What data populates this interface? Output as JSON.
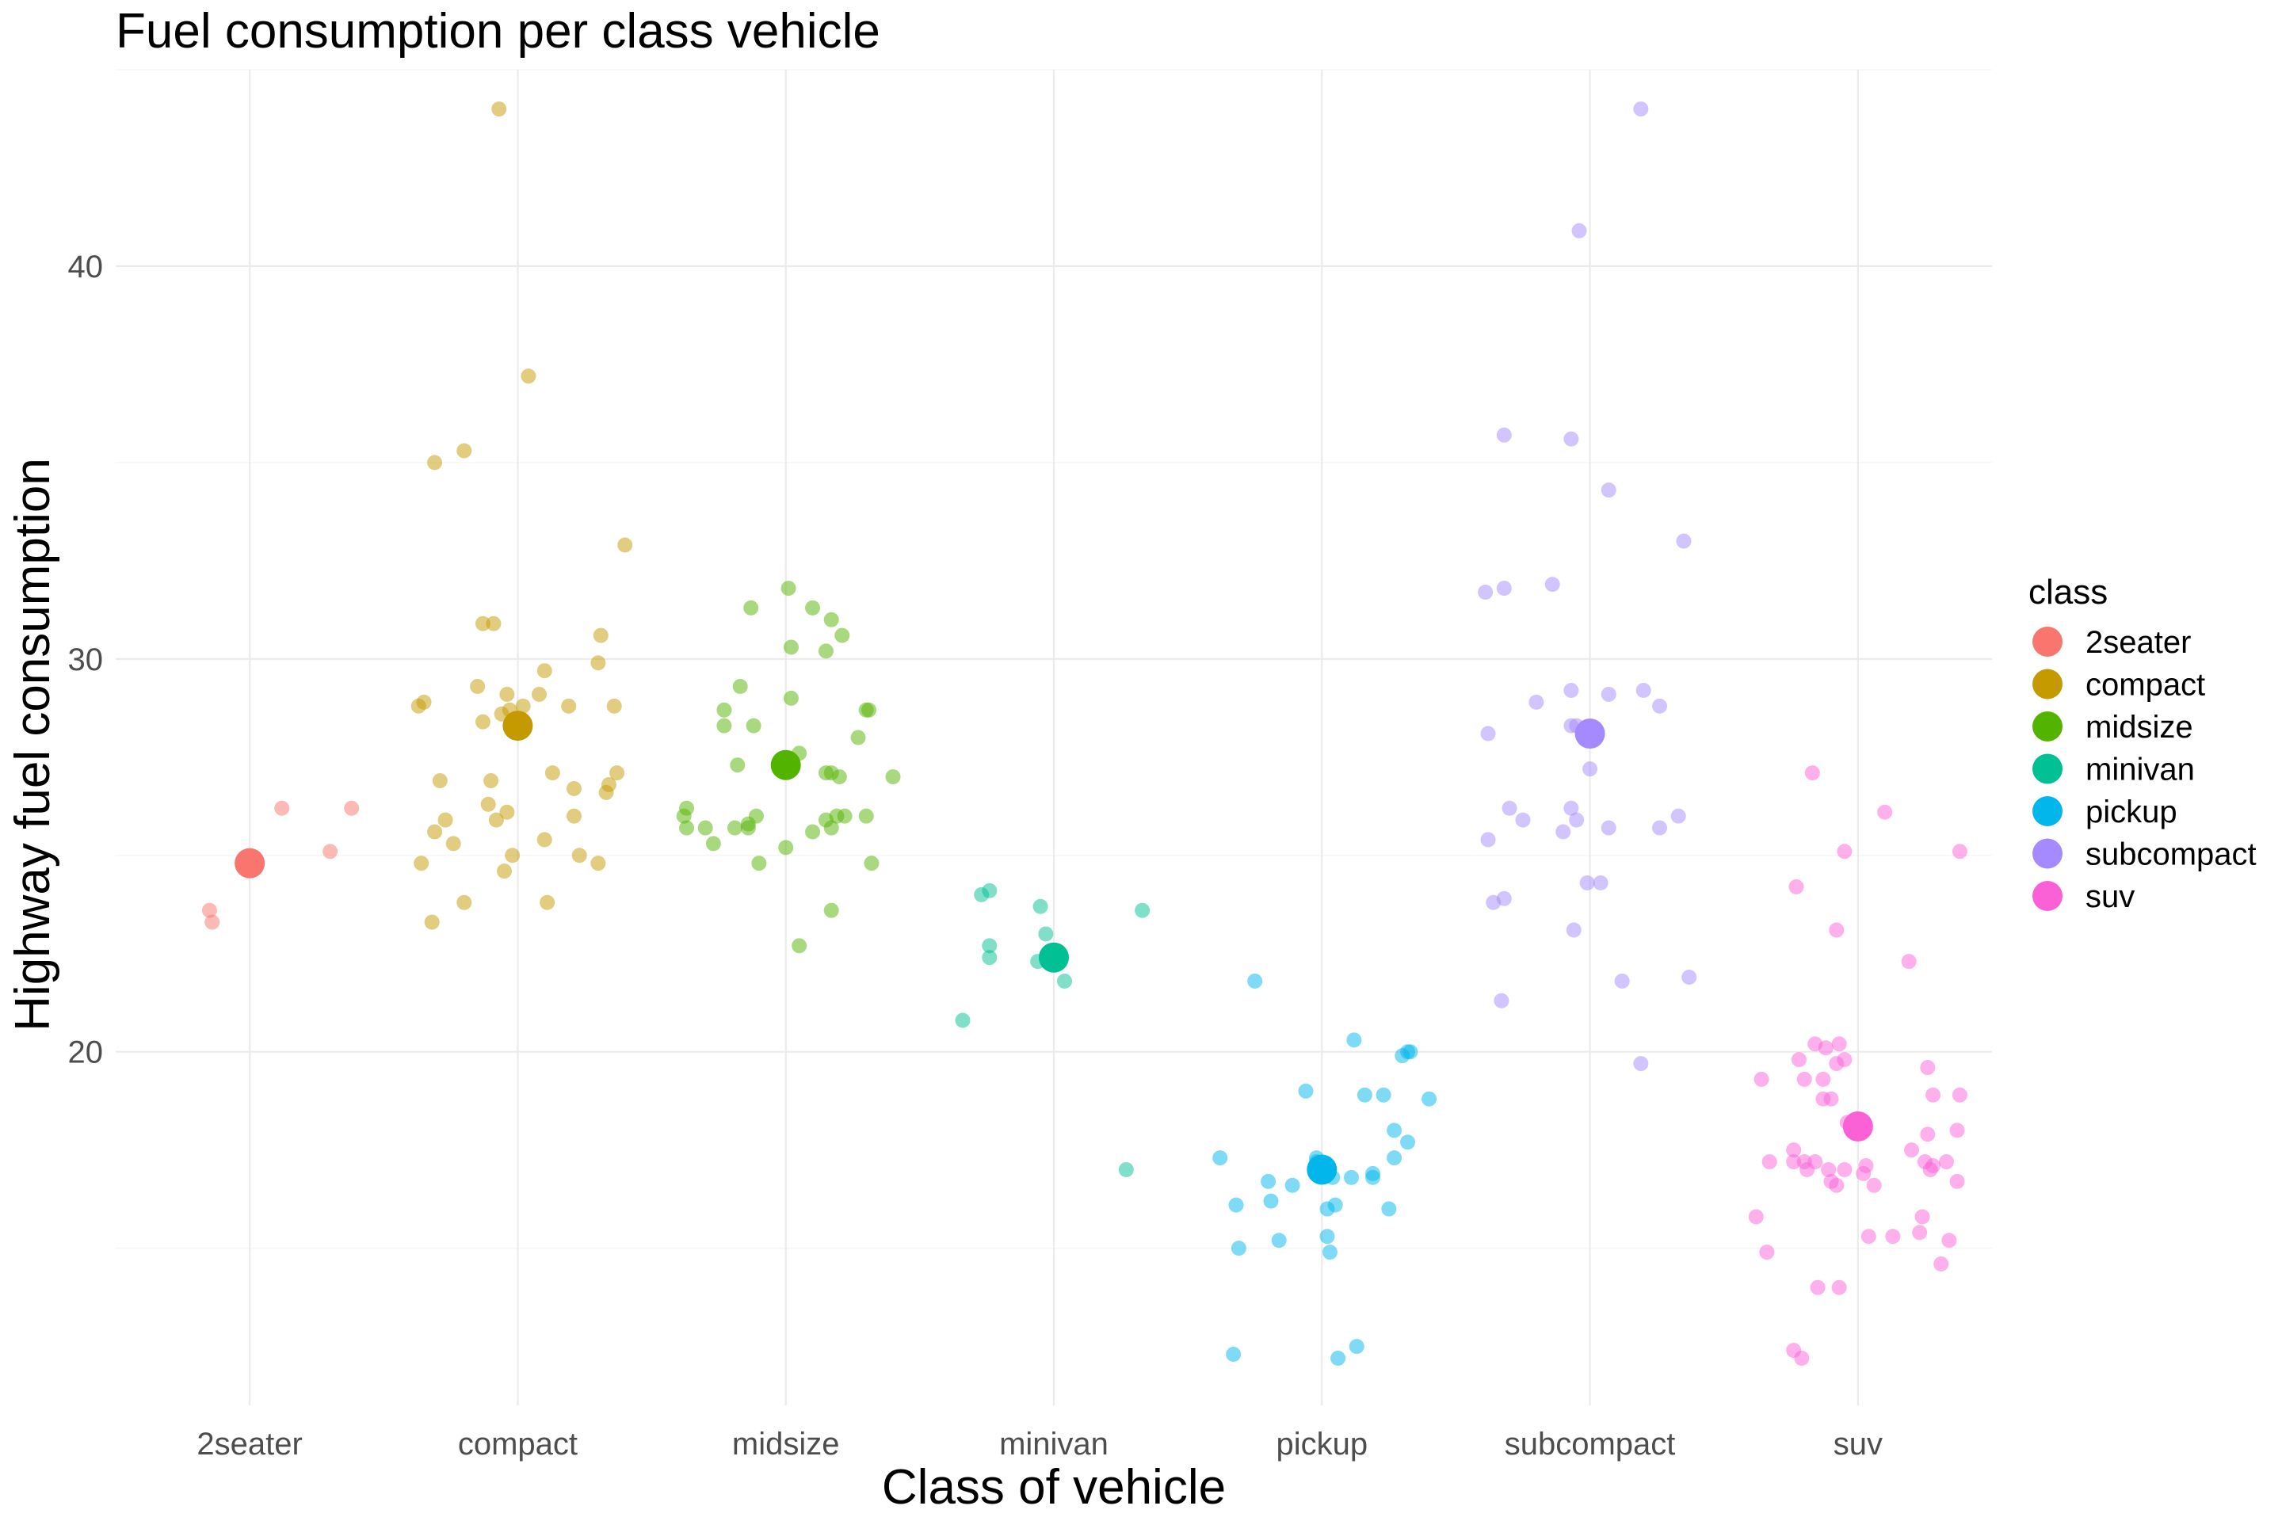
{
  "chart_data": {
    "type": "scatter",
    "title": "Fuel consumption per class vehicle",
    "xlabel": "Class of vehicle",
    "ylabel": "Highway fuel consumption",
    "categories": [
      "2seater",
      "compact",
      "midsize",
      "minivan",
      "pickup",
      "subcompact",
      "suv"
    ],
    "ylim": [
      11,
      45
    ],
    "yticks": [
      20,
      30,
      40
    ],
    "grid": true,
    "legend": {
      "title": "class",
      "position": "right"
    },
    "colors": {
      "2seater": "#F8766D",
      "compact": "#C49A00",
      "midsize": "#53B400",
      "minivan": "#00C094",
      "pickup": "#00B6EB",
      "subcompact": "#A58AFF",
      "suv": "#FB61D7"
    },
    "series": [
      {
        "name": "2seater",
        "mean": 24.8,
        "points": [
          [
            0.12,
            26.2
          ],
          [
            0.38,
            26.2
          ],
          [
            0.3,
            25.1
          ],
          [
            -0.15,
            23.6
          ],
          [
            -0.14,
            23.3
          ]
        ]
      },
      {
        "name": "compact",
        "mean": 28.3,
        "points": [
          [
            -0.07,
            44
          ],
          [
            0.04,
            37.2
          ],
          [
            -0.2,
            35.3
          ],
          [
            -0.31,
            35
          ],
          [
            0.4,
            32.9
          ],
          [
            -0.13,
            30.9
          ],
          [
            -0.09,
            30.9
          ],
          [
            0.31,
            30.6
          ],
          [
            0.1,
            29.7
          ],
          [
            0.3,
            29.9
          ],
          [
            -0.35,
            28.9
          ],
          [
            -0.37,
            28.8
          ],
          [
            -0.04,
            29.1
          ],
          [
            -0.15,
            29.3
          ],
          [
            -0.03,
            28.7
          ],
          [
            0.08,
            29.1
          ],
          [
            0.02,
            28.8
          ],
          [
            0.19,
            28.8
          ],
          [
            0.36,
            28.8
          ],
          [
            -0.06,
            28.6
          ],
          [
            -0.13,
            28.4
          ],
          [
            -0.29,
            26.9
          ],
          [
            -0.1,
            26.9
          ],
          [
            0.13,
            27.1
          ],
          [
            0.37,
            27.1
          ],
          [
            0.34,
            26.8
          ],
          [
            0.33,
            26.6
          ],
          [
            0.21,
            26.7
          ],
          [
            -0.27,
            25.9
          ],
          [
            -0.11,
            26.3
          ],
          [
            -0.08,
            25.9
          ],
          [
            -0.04,
            26.1
          ],
          [
            0.21,
            26
          ],
          [
            -0.31,
            25.6
          ],
          [
            -0.24,
            25.3
          ],
          [
            0.1,
            25.4
          ],
          [
            -0.02,
            25
          ],
          [
            0.23,
            25
          ],
          [
            0.3,
            24.8
          ],
          [
            -0.36,
            24.8
          ],
          [
            -0.05,
            24.6
          ],
          [
            -0.2,
            23.8
          ],
          [
            0.11,
            23.8
          ],
          [
            -0.32,
            23.3
          ]
        ]
      },
      {
        "name": "midsize",
        "mean": 27.3,
        "points": [
          [
            0.01,
            31.8
          ],
          [
            -0.13,
            31.3
          ],
          [
            0.1,
            31.3
          ],
          [
            0.17,
            31
          ],
          [
            0.21,
            30.6
          ],
          [
            0.02,
            30.3
          ],
          [
            0.15,
            30.2
          ],
          [
            -0.17,
            29.3
          ],
          [
            0.02,
            29
          ],
          [
            -0.23,
            28.7
          ],
          [
            -0.12,
            28.3
          ],
          [
            -0.23,
            28.3
          ],
          [
            0.31,
            28.7
          ],
          [
            0.3,
            28.7
          ],
          [
            0.27,
            28
          ],
          [
            -0.18,
            27.3
          ],
          [
            0.05,
            27.6
          ],
          [
            0.15,
            27.1
          ],
          [
            0.17,
            27.1
          ],
          [
            0.2,
            27
          ],
          [
            0.4,
            27
          ],
          [
            -0.38,
            26
          ],
          [
            -0.37,
            26.2
          ],
          [
            -0.3,
            25.7
          ],
          [
            -0.37,
            25.7
          ],
          [
            -0.19,
            25.7
          ],
          [
            -0.14,
            25.8
          ],
          [
            -0.14,
            25.7
          ],
          [
            -0.11,
            26
          ],
          [
            0.1,
            25.6
          ],
          [
            0.15,
            25.9
          ],
          [
            0.17,
            25.7
          ],
          [
            0.19,
            26
          ],
          [
            0.22,
            26
          ],
          [
            0.3,
            26
          ],
          [
            -0.27,
            25.3
          ],
          [
            0,
            25.2
          ],
          [
            -0.1,
            24.8
          ],
          [
            0.32,
            24.8
          ],
          [
            0.17,
            23.6
          ],
          [
            0.05,
            22.7
          ]
        ]
      },
      {
        "name": "minivan",
        "mean": 22.4,
        "points": [
          [
            -0.27,
            24
          ],
          [
            -0.24,
            24.1
          ],
          [
            -0.05,
            23.7
          ],
          [
            0.33,
            23.6
          ],
          [
            -0.24,
            22.7
          ],
          [
            -0.24,
            22.4
          ],
          [
            -0.03,
            23
          ],
          [
            -0.06,
            22.3
          ],
          [
            0.04,
            21.8
          ],
          [
            -0.34,
            20.8
          ],
          [
            0.27,
            17
          ]
        ]
      },
      {
        "name": "pickup",
        "mean": 17,
        "points": [
          [
            -0.25,
            21.8
          ],
          [
            0.12,
            20.3
          ],
          [
            0.32,
            20
          ],
          [
            0.33,
            20
          ],
          [
            0.3,
            19.9
          ],
          [
            -0.06,
            19
          ],
          [
            0.16,
            18.9
          ],
          [
            0.23,
            18.9
          ],
          [
            0.4,
            18.8
          ],
          [
            0.27,
            18
          ],
          [
            0.32,
            17.7
          ],
          [
            0.27,
            17.3
          ],
          [
            -0.38,
            17.3
          ],
          [
            -0.02,
            17.3
          ],
          [
            -0.02,
            17.2
          ],
          [
            0.02,
            17.1
          ],
          [
            0.02,
            17
          ],
          [
            -0.01,
            16.9
          ],
          [
            0.11,
            16.8
          ],
          [
            0.04,
            16.8
          ],
          [
            0.19,
            16.9
          ],
          [
            0.19,
            16.8
          ],
          [
            -0.2,
            16.7
          ],
          [
            -0.11,
            16.6
          ],
          [
            -0.19,
            16.2
          ],
          [
            0.05,
            16.1
          ],
          [
            -0.32,
            16.1
          ],
          [
            0.25,
            16
          ],
          [
            0.02,
            16
          ],
          [
            -0.16,
            15.2
          ],
          [
            -0.31,
            15
          ],
          [
            0.02,
            15.3
          ],
          [
            0.03,
            14.9
          ],
          [
            -0.33,
            12.3
          ],
          [
            0.13,
            12.5
          ],
          [
            0.06,
            12.2
          ]
        ]
      },
      {
        "name": "subcompact",
        "mean": 28.1,
        "points": [
          [
            0.19,
            44
          ],
          [
            -0.04,
            40.9
          ],
          [
            -0.32,
            35.7
          ],
          [
            -0.07,
            35.6
          ],
          [
            0.07,
            34.3
          ],
          [
            0.35,
            33
          ],
          [
            -0.39,
            31.7
          ],
          [
            -0.32,
            31.8
          ],
          [
            -0.14,
            31.9
          ],
          [
            -0.07,
            29.2
          ],
          [
            0.07,
            29.1
          ],
          [
            0.2,
            29.2
          ],
          [
            0.26,
            28.8
          ],
          [
            -0.2,
            28.9
          ],
          [
            -0.38,
            28.1
          ],
          [
            -0.07,
            28.3
          ],
          [
            -0.05,
            28.3
          ],
          [
            0,
            27.2
          ],
          [
            -0.3,
            26.2
          ],
          [
            -0.25,
            25.9
          ],
          [
            -0.07,
            26.2
          ],
          [
            -0.05,
            25.9
          ],
          [
            -0.1,
            25.6
          ],
          [
            0.07,
            25.7
          ],
          [
            0.26,
            25.7
          ],
          [
            0.33,
            26
          ],
          [
            -0.38,
            25.4
          ],
          [
            -0.01,
            24.3
          ],
          [
            0.04,
            24.3
          ],
          [
            -0.32,
            23.9
          ],
          [
            -0.36,
            23.8
          ],
          [
            -0.06,
            23.1
          ],
          [
            -0.33,
            21.3
          ],
          [
            0.12,
            21.8
          ],
          [
            0.37,
            21.9
          ],
          [
            0.19,
            19.7
          ]
        ]
      },
      {
        "name": "suv",
        "mean": 18.1,
        "points": [
          [
            -0.17,
            27.1
          ],
          [
            0.1,
            26.1
          ],
          [
            0.38,
            25.1
          ],
          [
            -0.05,
            25.1
          ],
          [
            -0.23,
            24.2
          ],
          [
            -0.08,
            23.1
          ],
          [
            0.19,
            22.3
          ],
          [
            -0.36,
            19.3
          ],
          [
            -0.22,
            19.8
          ],
          [
            -0.16,
            20.2
          ],
          [
            -0.12,
            20.1
          ],
          [
            -0.07,
            20.2
          ],
          [
            -0.05,
            19.8
          ],
          [
            -0.08,
            19.7
          ],
          [
            0.26,
            19.6
          ],
          [
            -0.2,
            19.3
          ],
          [
            -0.13,
            19.3
          ],
          [
            -0.13,
            18.8
          ],
          [
            -0.1,
            18.8
          ],
          [
            -0.04,
            18.2
          ],
          [
            -0.02,
            18.1
          ],
          [
            0.38,
            18.9
          ],
          [
            0.28,
            18.9
          ],
          [
            0.37,
            18
          ],
          [
            0.26,
            17.9
          ],
          [
            -0.33,
            17.2
          ],
          [
            -0.24,
            17.5
          ],
          [
            -0.2,
            17.2
          ],
          [
            -0.16,
            17.2
          ],
          [
            -0.11,
            17
          ],
          [
            -0.05,
            17
          ],
          [
            0.03,
            17.1
          ],
          [
            0.02,
            16.9
          ],
          [
            0.2,
            17.5
          ],
          [
            0.25,
            17.2
          ],
          [
            0.28,
            17.1
          ],
          [
            -0.24,
            17.2
          ],
          [
            -0.19,
            17
          ],
          [
            -0.1,
            16.7
          ],
          [
            0.06,
            16.6
          ],
          [
            0.27,
            17
          ],
          [
            0.33,
            17.2
          ],
          [
            0.37,
            16.7
          ],
          [
            -0.08,
            16.6
          ],
          [
            -0.38,
            15.8
          ],
          [
            0.24,
            15.8
          ],
          [
            0.04,
            15.3
          ],
          [
            0.13,
            15.3
          ],
          [
            0.23,
            15.4
          ],
          [
            0.34,
            15.2
          ],
          [
            -0.34,
            14.9
          ],
          [
            0.31,
            14.6
          ],
          [
            -0.15,
            14
          ],
          [
            -0.07,
            14
          ],
          [
            -0.24,
            12.4
          ],
          [
            -0.21,
            12.2
          ]
        ]
      }
    ]
  }
}
